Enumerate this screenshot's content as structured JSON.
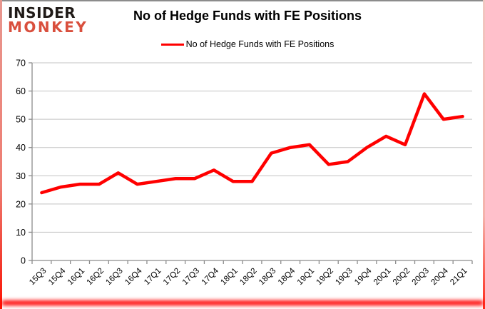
{
  "logo": {
    "line1": "INSIDER",
    "line2": "MONKEY"
  },
  "title": "No of Hedge Funds with FE Positions",
  "legend": {
    "label": "No of Hedge Funds with FE Positions"
  },
  "chart_data": {
    "type": "line",
    "title": "No of Hedge Funds with FE Positions",
    "categories": [
      "15Q3",
      "15Q4",
      "16Q1",
      "16Q2",
      "16Q3",
      "16Q4",
      "17Q1",
      "17Q2",
      "17Q3",
      "17Q4",
      "18Q1",
      "18Q2",
      "18Q3",
      "18Q4",
      "19Q1",
      "19Q2",
      "19Q3",
      "19Q4",
      "20Q1",
      "20Q2",
      "20Q3",
      "20Q4",
      "21Q1"
    ],
    "series": [
      {
        "name": "No of Hedge Funds with FE Positions",
        "color": "#FF0000",
        "values": [
          24,
          26,
          27,
          27,
          31,
          27,
          28,
          29,
          29,
          32,
          28,
          28,
          38,
          40,
          41,
          34,
          35,
          40,
          44,
          41,
          59,
          50,
          51
        ]
      }
    ],
    "xlabel": "",
    "ylabel": "",
    "ylim": [
      0,
      70
    ],
    "yticks": [
      0,
      10,
      20,
      30,
      40,
      50,
      60,
      70
    ],
    "grid": true,
    "legend_position": "top-center"
  },
  "colors": {
    "line": "#FF0000",
    "gridline": "#C3C3C3",
    "axis": "#8C8C8C",
    "logo_black": "#1F1A17",
    "logo_red": "#D94F3D",
    "frame_glow": "#FF0000"
  }
}
